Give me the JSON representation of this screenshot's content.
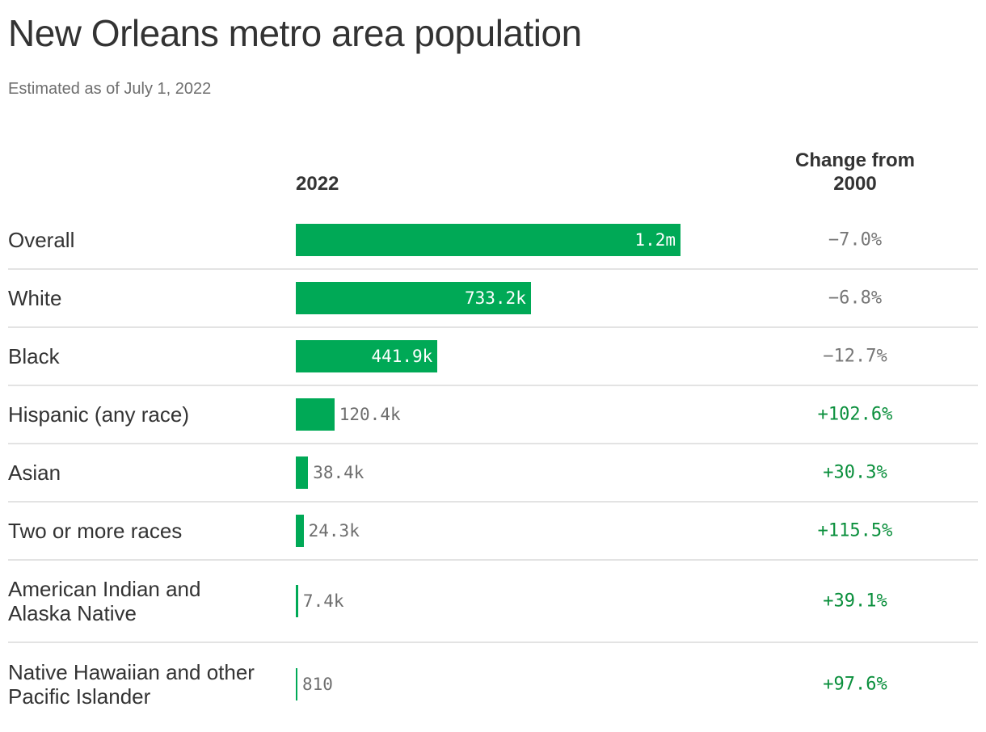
{
  "title": "New Orleans metro area population",
  "subtitle": "Estimated as of July 1, 2022",
  "chart_data": {
    "type": "bar",
    "orientation": "horizontal",
    "column_headers": {
      "value": "2022",
      "change": "Change from 2000"
    },
    "categories": [
      "Overall",
      "White",
      "Black",
      "Hispanic (any race)",
      "Asian",
      "Two or more races",
      "American Indian and Alaska Native",
      "Native Hawaiian and other Pacific Islander"
    ],
    "values": [
      1200000,
      733200,
      441900,
      120400,
      38400,
      24300,
      7400,
      810
    ],
    "value_labels": [
      "1.2m",
      "733.2k",
      "441.9k",
      "120.4k",
      "38.4k",
      "24.3k",
      "7.4k",
      "810"
    ],
    "changes": [
      "−7.0%",
      "−6.8%",
      "−12.7%",
      "+102.6%",
      "+30.3%",
      "+115.5%",
      "+39.1%",
      "+97.6%"
    ],
    "colors": {
      "bar": "#00a956",
      "positive": "#0a8f3c",
      "negative": "#777777"
    }
  }
}
